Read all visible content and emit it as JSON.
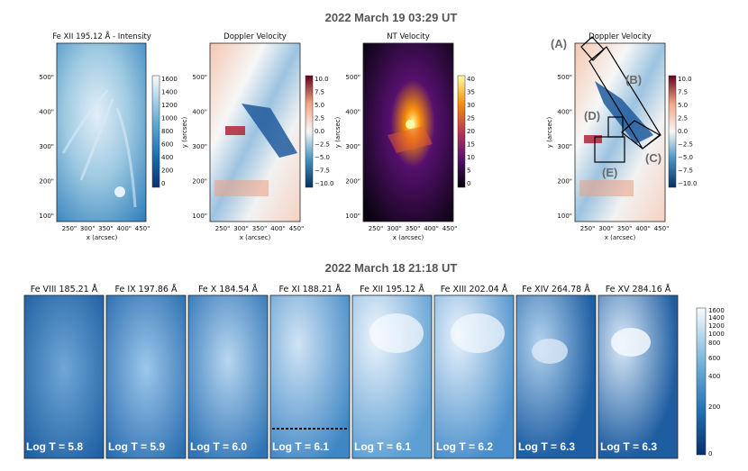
{
  "top_title": "2022 March 19 03:29 UT",
  "bottom_title": "2022 March 18 21:18 UT",
  "x_axis_label": "x (arcsec)",
  "y_axis_label": "y (arcsec)",
  "x_ticks": [
    "250\"",
    "300\"",
    "350\"",
    "400\"",
    "450\""
  ],
  "y_ticks": [
    "100\"",
    "200\"",
    "300\"",
    "400\"",
    "500\""
  ],
  "top_panels": [
    {
      "title": "Fe XII 195.12 Å - Intensity",
      "colorbar_ticks": [
        "1600",
        "1400",
        "1200",
        "1000",
        "800",
        "600",
        "400",
        "200",
        "0"
      ]
    },
    {
      "title": "Doppler Velocity",
      "colorbar_ticks": [
        "10.0",
        "7.5",
        "5.0",
        "2.5",
        "0.0",
        "−2.5",
        "−5.0",
        "−7.5",
        "−10.0"
      ]
    },
    {
      "title": "NT Velocity",
      "colorbar_ticks": [
        "40",
        "35",
        "30",
        "25",
        "20",
        "15",
        "10",
        "5",
        "0"
      ]
    },
    {
      "title": "Doppler Velocity",
      "colorbar_ticks": [
        "10.0",
        "7.5",
        "5.0",
        "2.5",
        "0.0",
        "−2.5",
        "−5.0",
        "−7.5",
        "−10.0"
      ]
    }
  ],
  "region_labels": [
    "(A)",
    "(B)",
    "(C)",
    "(D)",
    "(E)"
  ],
  "bottom_panels": [
    {
      "title": "Fe VIII 185.21 Å",
      "log_t": "Log T =  5.8"
    },
    {
      "title": "Fe IX 197.86 Å",
      "log_t": "Log T =  5.9"
    },
    {
      "title": "Fe X 184.54 Å",
      "log_t": "Log T =  6.0"
    },
    {
      "title": "Fe XI 188.21 Å",
      "log_t": "Log T =  6.1"
    },
    {
      "title": "Fe XII 195.12 Å",
      "log_t": "Log T =  6.1"
    },
    {
      "title": "Fe XIII 202.04 Å",
      "log_t": "Log T =  6.2"
    },
    {
      "title": "Fe XIV 264.78 Å",
      "log_t": "Log T =  6.3"
    },
    {
      "title": "Fe XV 284.16 Å",
      "log_t": "Log T =  6.3"
    }
  ],
  "bottom_colorbar_ticks": [
    "1600",
    "1400",
    "1200",
    "1000",
    "800",
    "600",
    "400",
    "200",
    "0"
  ],
  "colors": {
    "intensity_dark": "#08306b",
    "intensity_light": "#deebf7",
    "doppler_red": "#b2182b",
    "doppler_blue": "#2166ac",
    "nt_dark": "#000004",
    "nt_bright": "#fcffa4"
  }
}
